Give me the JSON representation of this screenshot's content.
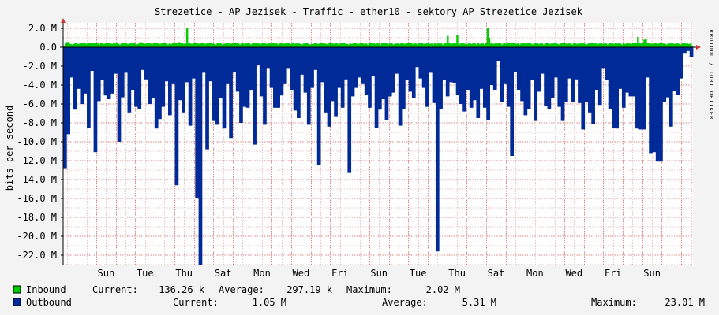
{
  "chart_data": {
    "type": "area",
    "title": "Strezetice - AP Jezisek - Traffic - ether10 - sektory AP Strezetice Jezisek",
    "ylabel": "bits per second",
    "watermark": "RRDTOOL / TOBI OETIKER",
    "ylim": [
      -23000000,
      2400000
    ],
    "y_ticks": [
      2,
      0,
      -2,
      -4,
      -6,
      -8,
      -10,
      -12,
      -14,
      -16,
      -18,
      -20,
      -22
    ],
    "y_tick_labels": [
      "2.0 M",
      "0.0",
      "-2.0 M",
      "-4.0 M",
      "-6.0 M",
      "-8.0 M",
      "-10.0 M",
      "-12.0 M",
      "-14.0 M",
      "-16.0 M",
      "-18.0 M",
      "-20.0 M",
      "-22.0 M"
    ],
    "x_tick_labels": [
      "Sun",
      "Tue",
      "Thu",
      "Sat",
      "Mon",
      "Wed",
      "Fri",
      "Sun",
      "Tue",
      "Thu",
      "Sat",
      "Mon",
      "Wed",
      "Fri",
      "Sun"
    ],
    "x_tick_positions": [
      0.5,
      2.5,
      4.5,
      6.5,
      8.5,
      10.5,
      12.5,
      14.5,
      16.5,
      18.5,
      20.5,
      22.5,
      24.5,
      26.5,
      28.5
    ],
    "x_range": [
      -1.7,
      30.6
    ],
    "series": [
      {
        "name": "Inbound",
        "color": "#00cc00",
        "values": [
          0.1,
          0.5,
          0.55,
          0.55,
          0.35,
          0.3,
          0.35,
          0.5,
          0.4,
          0.35,
          0.4,
          0.5,
          0.4,
          0.45,
          0.35,
          0.5,
          0.5,
          0.4,
          0.5,
          0.4,
          0.45,
          0.4,
          0.3,
          0.5,
          0.4,
          0.35,
          0.4,
          0.45,
          0.5,
          0.4,
          0.35,
          0.45,
          0.4,
          0.5,
          0.35,
          0.3,
          0.4,
          0.45,
          0.45,
          0.4,
          0.35,
          0.4,
          0.5,
          0.4,
          0.45,
          0.3,
          0.35,
          0.4,
          0.55,
          0.45,
          0.4,
          0.35,
          0.5,
          0.45,
          0.4,
          0.3,
          0.45,
          0.5,
          0.5,
          0.4,
          0.35,
          0.4,
          0.5,
          0.45,
          0.4,
          0.3,
          0.4,
          0.35,
          0.45,
          0.4,
          0.5,
          0.4,
          0.55,
          0.45,
          0.45,
          0.35,
          0.4,
          2.0,
          0.5,
          0.4,
          0.35,
          0.45,
          0.45,
          0.4,
          0.4,
          0.35,
          0.45,
          0.5,
          0.35,
          0.4,
          0.4,
          0.45,
          0.5,
          0.4,
          0.35,
          0.3,
          0.45,
          0.45,
          0.4,
          0.3,
          0.35,
          0.4,
          0.45,
          0.4,
          0.35,
          0.4,
          0.4,
          0.5,
          0.45,
          0.4,
          0.3,
          0.4,
          0.4,
          0.35,
          0.4,
          0.45,
          0.4,
          0.3,
          0.4,
          0.5,
          0.45,
          0.4,
          0.4,
          0.35,
          0.4,
          0.45,
          0.4,
          0.35,
          0.45,
          0.4,
          0.4,
          0.5,
          0.4,
          0.4,
          0.3,
          0.45,
          0.4,
          0.35,
          0.4,
          0.4,
          0.45,
          0.4,
          0.35,
          0.5,
          0.35,
          0.4,
          0.45,
          0.4,
          0.35,
          0.3,
          0.4,
          0.45,
          0.5,
          0.35,
          0.3,
          0.35,
          0.35,
          0.45,
          0.4,
          0.35,
          0.4,
          0.5,
          0.45,
          0.4,
          0.35,
          0.3,
          0.45,
          0.4,
          0.4,
          0.35,
          0.45,
          0.4,
          0.3,
          0.4,
          0.45,
          0.5,
          0.4,
          0.35,
          0.3,
          0.4,
          0.35,
          0.4,
          0.45,
          0.4,
          0.3,
          0.4,
          0.45,
          0.4,
          0.35,
          0.4,
          0.3,
          0.4,
          0.45,
          0.4,
          0.4,
          0.35,
          0.4,
          0.4,
          0.3,
          0.45,
          0.4,
          0.5,
          0.4,
          0.35,
          0.4,
          0.45,
          0.3,
          0.35,
          0.4,
          0.4,
          0.35,
          0.45,
          0.4,
          0.35,
          0.4,
          0.45,
          0.45,
          0.5,
          0.35,
          0.4,
          0.4,
          0.3,
          0.45,
          0.4,
          0.5,
          0.35,
          0.4,
          0.4,
          0.45,
          0.35,
          0.4,
          0.3,
          0.45,
          0.35,
          0.4,
          0.4,
          0.4,
          0.3,
          0.4,
          0.5,
          1.2,
          0.5,
          0.35,
          0.4,
          0.45,
          0.4,
          1.3,
          0.3,
          0.4,
          0.4,
          0.45,
          0.35,
          0.3,
          0.4,
          0.4,
          0.35,
          0.45,
          0.4,
          0.3,
          0.5,
          0.35,
          0.4,
          0.4,
          0.3,
          0.45,
          2.0,
          1.0,
          0.4,
          0.4,
          0.35,
          0.5,
          0.4,
          0.45,
          0.4,
          0.3,
          0.4,
          0.4,
          0.35,
          0.45,
          0.4,
          0.5,
          0.5,
          0.4,
          0.35,
          0.45,
          0.3,
          0.4,
          0.4,
          0.45,
          0.35,
          0.45,
          0.5,
          0.4,
          0.3,
          0.4,
          0.4,
          0.45,
          0.35,
          0.4,
          0.4,
          0.3,
          0.4,
          0.45,
          0.5,
          0.35,
          0.4,
          0.4,
          0.45,
          0.4,
          0.35,
          0.3,
          0.4,
          0.45,
          0.4,
          0.4,
          0.35,
          0.4,
          0.4,
          0.3,
          0.45,
          0.4,
          0.35,
          0.4,
          0.4,
          0.45,
          0.4,
          0.35,
          0.3,
          0.4,
          0.4,
          0.5,
          0.45,
          0.4,
          0.4,
          0.35,
          0.4,
          0.45,
          0.35,
          0.4,
          0.4,
          0.3,
          0.45,
          0.4,
          0.4,
          0.35,
          0.45,
          0.4,
          0.4,
          0.4,
          0.3,
          0.4,
          0.35,
          0.45,
          0.4,
          0.4,
          0.35,
          0.5,
          0.4,
          0.45,
          1.1,
          0.5,
          0.4,
          0.4,
          0.8,
          0.9,
          0.5,
          0.4,
          0.4,
          0.35,
          0.4,
          0.45,
          0.35,
          0.4,
          0.45,
          0.4,
          0.4,
          0.35,
          0.3,
          0.4,
          0.4,
          0.45,
          0.4,
          0.35,
          0.5,
          0.4,
          0.35,
          0.3,
          0.4,
          0.45,
          0.4,
          0.4,
          0.35,
          0.4,
          0.14
        ]
      },
      {
        "name": "Outbound",
        "color": "#002a97",
        "values": [
          -12.8,
          -12.8,
          -9.2,
          -9.2,
          -3.2,
          -3.2,
          -6.6,
          -6.6,
          -4.4,
          -4.4,
          -6.0,
          -6.0,
          -4.9,
          -4.9,
          -8.5,
          -8.5,
          -2.5,
          -2.5,
          -11.1,
          -11.1,
          -5.7,
          -5.7,
          -3.5,
          -3.5,
          -5.1,
          -5.1,
          -5.5,
          -5.5,
          -4.9,
          -4.9,
          -2.8,
          -2.8,
          -10.0,
          -10.0,
          -5.3,
          -5.3,
          -2.7,
          -2.7,
          -6.9,
          -6.9,
          -4.5,
          -4.5,
          -6.3,
          -6.3,
          -6.5,
          -6.5,
          -2.4,
          -2.4,
          -3.4,
          -3.4,
          -6.0,
          -6.0,
          -5.4,
          -5.4,
          -8.6,
          -8.6,
          -7.6,
          -7.6,
          -6.3,
          -6.3,
          -3.6,
          -3.6,
          -7.2,
          -7.2,
          -3.9,
          -3.9,
          -14.6,
          -14.6,
          -5.6,
          -5.6,
          -6.9,
          -6.9,
          -3.7,
          -3.7,
          -8.3,
          -8.3,
          -3.3,
          -3.3,
          -16.0,
          -16.0,
          -23.0,
          -23.0,
          -2.7,
          -2.7,
          -10.8,
          -10.8,
          -3.6,
          -3.6,
          -7.8,
          -7.8,
          -8.2,
          -8.2,
          -5.4,
          -5.4,
          -8.6,
          -8.6,
          -3.9,
          -3.9,
          -9.6,
          -9.6,
          -2.6,
          -2.6,
          -4.7,
          -4.7,
          -8.0,
          -8.0,
          -6.3,
          -6.3,
          -6.4,
          -6.4,
          -4.5,
          -4.5,
          -10.3,
          -10.3,
          -1.9,
          -1.9,
          -5.2,
          -5.2,
          -8.2,
          -8.2,
          -2.2,
          -2.2,
          -4.3,
          -4.3,
          -6.4,
          -6.4,
          -6.4,
          -6.4,
          -5.1,
          -5.1,
          -3.9,
          -3.9,
          -2.2,
          -2.2,
          -4.5,
          -4.5,
          -6.7,
          -6.7,
          -7.5,
          -7.5,
          -2.9,
          -2.9,
          -4.8,
          -4.8,
          -8.2,
          -8.2,
          -4.3,
          -4.3,
          -2.4,
          -2.4,
          -12.5,
          -12.5,
          -3.7,
          -3.7,
          -6.9,
          -6.9,
          -8.4,
          -8.4,
          -5.7,
          -5.7,
          -7.3,
          -7.3,
          -4.3,
          -4.3,
          -6.4,
          -6.4,
          -3.4,
          -3.4,
          -13.3,
          -13.3,
          -5.2,
          -5.2,
          -4.3,
          -4.3,
          -3.2,
          -3.2,
          -3.9,
          -3.9,
          -5.0,
          -5.0,
          -6.4,
          -6.4,
          -3.0,
          -3.0,
          -8.5,
          -8.5,
          -6.6,
          -6.6,
          -5.5,
          -5.5,
          -7.7,
          -7.7,
          -5.2,
          -5.2,
          -4.8,
          -4.8,
          -2.8,
          -2.8,
          -8.3,
          -8.3,
          -6.5,
          -6.5,
          -3.5,
          -3.5,
          -4.7,
          -4.7,
          -5.4,
          -5.4,
          -2.1,
          -2.1,
          -3.3,
          -3.3,
          -4.3,
          -4.3,
          -6.3,
          -6.3,
          -2.7,
          -2.7,
          -5.9,
          -5.9,
          -21.6,
          -21.6,
          -6.5,
          -6.5,
          -3.5,
          -3.5,
          -5.2,
          -5.2,
          -3.7,
          -3.7,
          -3.8,
          -3.8,
          -5.0,
          -5.0,
          -6.0,
          -6.0,
          -6.8,
          -6.8,
          -4.5,
          -4.5,
          -6.4,
          -6.4,
          -5.6,
          -5.6,
          -7.5,
          -7.5,
          -4.4,
          -4.4,
          -6.4,
          -6.4,
          -7.7,
          -7.7,
          -4.0,
          -4.0,
          -4.5,
          -4.5,
          -1.5,
          -1.5,
          -5.8,
          -5.8,
          -3.9,
          -3.9,
          -6.3,
          -6.3,
          -11.5,
          -11.5,
          -2.6,
          -2.6,
          -4.5,
          -4.5,
          -5.7,
          -5.7,
          -7.2,
          -7.2,
          -6.5,
          -6.5,
          -3.5,
          -3.5,
          -7.8,
          -7.8,
          -4.7,
          -4.7,
          -2.8,
          -2.8,
          -6.2,
          -6.2,
          -6.5,
          -6.5,
          -5.4,
          -5.4,
          -3.2,
          -3.2,
          -6.3,
          -6.3,
          -7.8,
          -7.8,
          -5.8,
          -5.8,
          -3.3,
          -3.3,
          -5.8,
          -5.8,
          -3.4,
          -3.4,
          -5.9,
          -5.9,
          -8.7,
          -8.7,
          -5.8,
          -5.8,
          -6.9,
          -6.9,
          -8.1,
          -8.1,
          -4.5,
          -4.5,
          -6.1,
          -6.1,
          -2.2,
          -2.2,
          -3.5,
          -3.5,
          -6.5,
          -6.5,
          -8.5,
          -8.5,
          -8.6,
          -8.6,
          -4.4,
          -4.4,
          -6.4,
          -6.4,
          -4.8,
          -4.8,
          -5.2,
          -5.2,
          -5.2,
          -5.2,
          -8.6,
          -8.6,
          -8.7,
          -8.7,
          -8.7,
          -8.7,
          -3.2,
          -3.2,
          -11.2,
          -11.2,
          -11.1,
          -11.1,
          -12.1,
          -12.1,
          -12.1,
          -12.1,
          -5.8,
          -5.8,
          -5.3,
          -5.3,
          -8.4,
          -8.4,
          -4.6,
          -4.6,
          -5.0,
          -5.0,
          -3.3,
          -3.3,
          -0.6,
          -0.6,
          -0.4,
          -0.4,
          -1.05,
          -1.05
        ]
      }
    ],
    "legend": [
      {
        "name": "Inbound",
        "color": "#00cc00",
        "current_label": "Current:",
        "current": "136.26 k",
        "average_label": "Average:",
        "average": "297.19 k",
        "maximum_label": "Maximum:",
        "maximum": "2.02 M"
      },
      {
        "name": "Outbound",
        "color": "#002a97",
        "current_label": "Current:",
        "current": "1.05 M",
        "average_label": "Average:",
        "average": "5.31 M",
        "maximum_label": "Maximum:",
        "maximum": "23.01 M"
      }
    ],
    "grid": true,
    "colors": {
      "background": "#f3f3f3",
      "canvas": "#ffffff",
      "major_grid": "#e08080",
      "minor_grid": "#e8c8c8",
      "axis": "#000000",
      "arrow": "#cc3333"
    }
  }
}
